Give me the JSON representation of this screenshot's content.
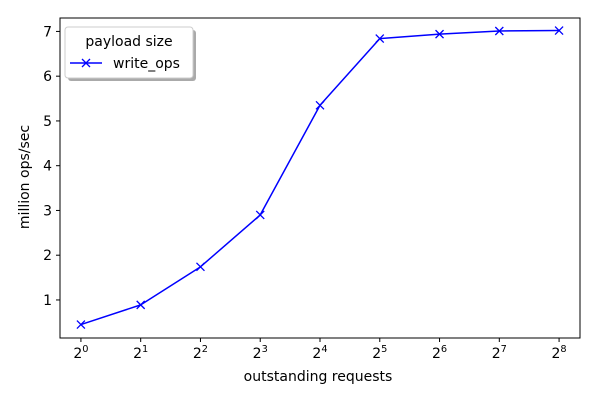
{
  "chart_data": {
    "type": "line",
    "title": "",
    "xlabel": "outstanding requests",
    "ylabel": "million ops/sec",
    "x_scale": "log2",
    "x": [
      1,
      2,
      4,
      8,
      16,
      32,
      64,
      128,
      256
    ],
    "x_tick_labels": [
      {
        "base": "2",
        "exp": "0"
      },
      {
        "base": "2",
        "exp": "1"
      },
      {
        "base": "2",
        "exp": "2"
      },
      {
        "base": "2",
        "exp": "3"
      },
      {
        "base": "2",
        "exp": "4"
      },
      {
        "base": "2",
        "exp": "5"
      },
      {
        "base": "2",
        "exp": "6"
      },
      {
        "base": "2",
        "exp": "7"
      },
      {
        "base": "2",
        "exp": "8"
      }
    ],
    "y_ticks": [
      "1",
      "2",
      "3",
      "4",
      "5",
      "6",
      "7"
    ],
    "ylim": [
      0.15,
      7.3
    ],
    "grid": false,
    "legend": {
      "title": "payload size",
      "placement": "top-left"
    },
    "series": [
      {
        "name": "write_ops",
        "color": "#0000ff",
        "marker": "x",
        "values": [
          0.45,
          0.89,
          1.74,
          2.9,
          5.35,
          6.84,
          6.94,
          7.01,
          7.02
        ]
      }
    ]
  }
}
